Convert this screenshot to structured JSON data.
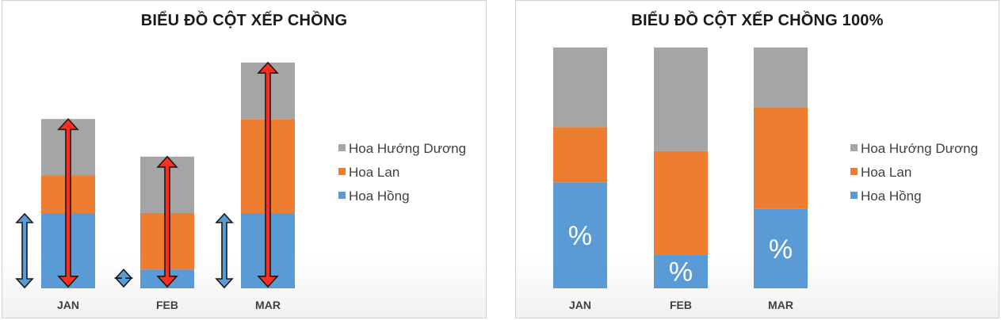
{
  "colors": {
    "Hoa Hồng": "#5b9bd5",
    "Hoa Lan": "#ed7d31",
    "Hoa Hướng Dương": "#a5a5a5",
    "arrow_red": "#ff2d1f",
    "arrow_blue": "#5b9bd5"
  },
  "chart_data": [
    {
      "type": "bar",
      "stacked": true,
      "title": "BIỂU ĐỒ CỘT XẾP CHỒNG",
      "categories": [
        "JAN",
        "FEB",
        "MAR"
      ],
      "series": [
        {
          "name": "Hoa Hồng",
          "values": [
            20,
            5,
            20
          ]
        },
        {
          "name": "Hoa Lan",
          "values": [
            10,
            15,
            25
          ]
        },
        {
          "name": "Hoa Hướng Dương",
          "values": [
            15,
            15,
            15
          ]
        }
      ],
      "legend": [
        "Hoa Hướng Dương",
        "Hoa Lan",
        "Hoa Hồng"
      ],
      "legend_position": "right",
      "ylim": [
        0,
        60
      ],
      "grid": false,
      "annotations": [
        "double arrow beside each column spanning Hoa Hồng segment",
        "red double arrow spanning each full column"
      ]
    },
    {
      "type": "bar",
      "stacked": true,
      "percent": true,
      "title": "BIỂU ĐỒ CỘT XẾP CHỒNG 100%",
      "categories": [
        "JAN",
        "FEB",
        "MAR"
      ],
      "series": [
        {
          "name": "Hoa Hồng",
          "values": [
            44,
            14,
            33
          ]
        },
        {
          "name": "Hoa Lan",
          "values": [
            23,
            43,
            42
          ]
        },
        {
          "name": "Hoa Hướng Dương",
          "values": [
            33,
            43,
            25
          ]
        }
      ],
      "segment_labels": [
        "%",
        "%",
        "%"
      ],
      "legend": [
        "Hoa Hướng Dương",
        "Hoa Lan",
        "Hoa Hồng"
      ],
      "legend_position": "right",
      "ylim": [
        0,
        100
      ],
      "grid": false
    }
  ]
}
